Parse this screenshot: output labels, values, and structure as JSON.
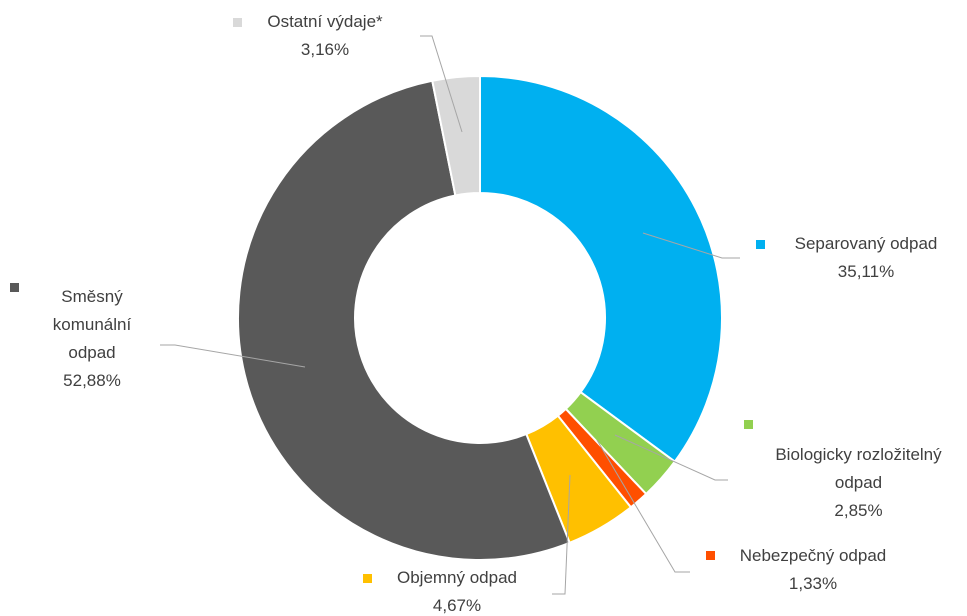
{
  "chart_data": {
    "type": "pie",
    "categories": [
      "Separovaný odpad",
      "Biologicky rozložitelný odpad",
      "Nebezpečný odpad",
      "Objemný odpad",
      "Směsný komunální odpad",
      "Ostatní výdaje*"
    ],
    "values": [
      35.11,
      2.85,
      1.33,
      4.67,
      52.88,
      3.16
    ],
    "value_labels": [
      "35,11%",
      "2,85%",
      "1,33%",
      "4,67%",
      "52,88%",
      "3,16%"
    ],
    "colors": [
      "#00b0f0",
      "#92d050",
      "#ff4f00",
      "#ffc000",
      "#595959",
      "#d9d9d9"
    ]
  }
}
